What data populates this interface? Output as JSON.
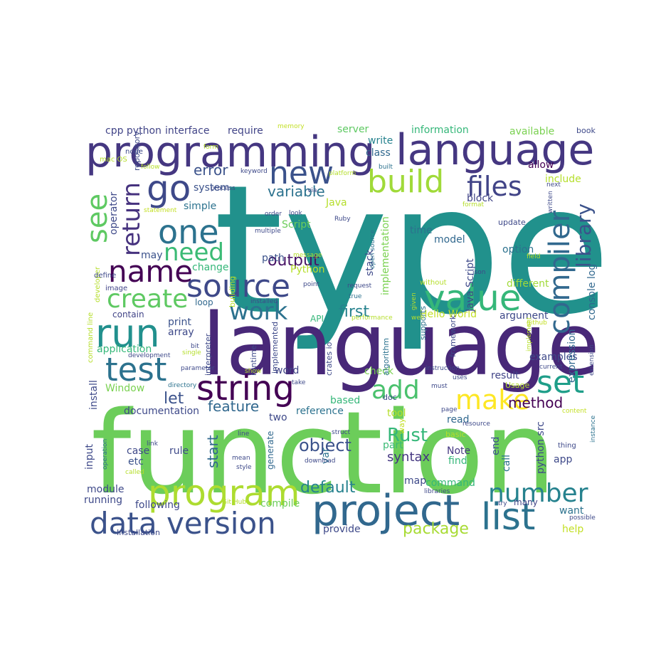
{
  "words": [
    {
      "text": "type",
      "color": "#21918c"
    },
    {
      "text": "function",
      "color": "#6ccd5a"
    },
    {
      "text": "language",
      "color": "#482878"
    },
    {
      "text": "programming",
      "color": "#453781"
    },
    {
      "text": "language",
      "color": "#453781"
    },
    {
      "text": "project",
      "color": "#31688e"
    },
    {
      "text": "program",
      "color": "#addc30"
    },
    {
      "text": "data version",
      "color": "#3b528b"
    },
    {
      "text": "list",
      "color": "#2c728e"
    },
    {
      "text": "number",
      "color": "#26828e"
    },
    {
      "text": "value",
      "color": "#35b779"
    },
    {
      "text": "run",
      "color": "#21908d"
    },
    {
      "text": "test",
      "color": "#2c728e"
    },
    {
      "text": "string",
      "color": "#440154"
    },
    {
      "text": "build",
      "color": "#a0da39"
    },
    {
      "text": "set",
      "color": "#1f9e89"
    },
    {
      "text": "make",
      "color": "#fde725"
    },
    {
      "text": "add",
      "color": "#4ac16d"
    },
    {
      "text": "name",
      "color": "#440154"
    },
    {
      "text": "go",
      "color": "#3e4989"
    },
    {
      "text": "one",
      "color": "#2c728e"
    },
    {
      "text": "new",
      "color": "#3b528b"
    },
    {
      "text": "source",
      "color": "#3e4989"
    },
    {
      "text": "create",
      "color": "#5ec962"
    },
    {
      "text": "see",
      "color": "#5ec962"
    },
    {
      "text": "need",
      "color": "#3bbb75"
    },
    {
      "text": "work",
      "color": "#2c728e"
    },
    {
      "text": "files",
      "color": "#414487"
    },
    {
      "text": "compiler",
      "color": "#31688e"
    },
    {
      "text": "return",
      "color": "#46327e"
    },
    {
      "text": "library",
      "color": "#3b528b"
    },
    {
      "text": "object",
      "color": "#3b528b"
    },
    {
      "text": "Rust",
      "color": "#35b779"
    },
    {
      "text": "default",
      "color": "#26828e"
    },
    {
      "text": "package",
      "color": "#a8db34"
    },
    {
      "text": "method",
      "color": "#440154"
    },
    {
      "text": "feature",
      "color": "#31688e"
    },
    {
      "text": "output",
      "color": "#471365"
    },
    {
      "text": "variable",
      "color": "#2c728e"
    },
    {
      "text": "error",
      "color": "#3b528b"
    },
    {
      "text": "first",
      "color": "#26828e"
    },
    {
      "text": "let",
      "color": "#3b528b"
    },
    {
      "text": "syntax",
      "color": "#453781"
    },
    {
      "text": "documentation",
      "color": "#3e4989"
    },
    {
      "text": "examples",
      "color": "#3e4989"
    },
    {
      "text": "result",
      "color": "#414487"
    },
    {
      "text": "start",
      "color": "#31688e"
    },
    {
      "text": "cpp python",
      "color": "#414487"
    },
    {
      "text": "interface",
      "color": "#414487"
    },
    {
      "text": "require",
      "color": "#414487"
    },
    {
      "text": "server",
      "color": "#5ec962"
    },
    {
      "text": "information",
      "color": "#35b779"
    },
    {
      "text": "available",
      "color": "#7ad151"
    },
    {
      "text": "book",
      "color": "#3e4989"
    },
    {
      "text": "write",
      "color": "#26828e"
    },
    {
      "text": "class",
      "color": "#31688e"
    },
    {
      "text": "allow",
      "color": "#440154"
    },
    {
      "text": "include",
      "color": "#b5de2b"
    },
    {
      "text": "system",
      "color": "#3b528b"
    },
    {
      "text": "simple",
      "color": "#2c728e"
    },
    {
      "text": "Java",
      "color": "#b5de2b"
    },
    {
      "text": "block",
      "color": "#414487"
    },
    {
      "text": "Script",
      "color": "#6ccd5a"
    },
    {
      "text": "time",
      "color": "#2c728e"
    },
    {
      "text": "model",
      "color": "#31688e"
    },
    {
      "text": "update",
      "color": "#3e4989"
    },
    {
      "text": "change",
      "color": "#35b779"
    },
    {
      "text": "path",
      "color": "#3b528b"
    },
    {
      "text": "may",
      "color": "#3b528b"
    },
    {
      "text": "Python",
      "color": "#b5de2b"
    },
    {
      "text": "option",
      "color": "#2c728e"
    },
    {
      "text": "different",
      "color": "#a0da39"
    },
    {
      "text": "print",
      "color": "#3b528b"
    },
    {
      "text": "array",
      "color": "#3e4989"
    },
    {
      "text": "application",
      "color": "#35b779"
    },
    {
      "text": "contain",
      "color": "#414487"
    },
    {
      "text": "loop",
      "color": "#31688e"
    },
    {
      "text": "API",
      "color": "#35b779"
    },
    {
      "text": "Hello World",
      "color": "#c2df23"
    },
    {
      "text": "argument",
      "color": "#3e4989"
    },
    {
      "text": "word",
      "color": "#414487"
    },
    {
      "text": "check",
      "color": "#7ad151"
    },
    {
      "text": "based",
      "color": "#35b779"
    },
    {
      "text": "two",
      "color": "#3e4989"
    },
    {
      "text": "reference",
      "color": "#2c728e"
    },
    {
      "text": "tool",
      "color": "#b5de2b"
    },
    {
      "text": "read",
      "color": "#31688e"
    },
    {
      "text": "case",
      "color": "#3e4989"
    },
    {
      "text": "rule",
      "color": "#3e4989"
    },
    {
      "text": "etc",
      "color": "#3b528b"
    },
    {
      "text": "part",
      "color": "#3bbb75"
    },
    {
      "text": "Note",
      "color": "#453781"
    },
    {
      "text": "find",
      "color": "#35b779"
    },
    {
      "text": "app",
      "color": "#3e4989"
    },
    {
      "text": "module",
      "color": "#3e4989"
    },
    {
      "text": "running",
      "color": "#3e4989"
    },
    {
      "text": "following",
      "color": "#3e4989"
    },
    {
      "text": "compile",
      "color": "#6ccd5a"
    },
    {
      "text": "map",
      "color": "#3e4989"
    },
    {
      "text": "command",
      "color": "#35b779"
    },
    {
      "text": "want",
      "color": "#2c728e"
    },
    {
      "text": "help",
      "color": "#c2df23"
    },
    {
      "text": "provide",
      "color": "#3e4989"
    },
    {
      "text": "Installation",
      "color": "#3e4989"
    },
    {
      "text": "many",
      "color": "#414487"
    },
    {
      "text": "input",
      "color": "#3e4989"
    },
    {
      "text": "var",
      "color": "#2c728e"
    },
    {
      "text": "generate",
      "color": "#31688e"
    },
    {
      "text": "implementation",
      "color": "#7ad151"
    },
    {
      "text": "Java Script",
      "color": "#3e4989"
    },
    {
      "text": "stack",
      "color": "#3e4989"
    },
    {
      "text": "python src",
      "color": "#3e4989"
    },
    {
      "text": "expression",
      "color": "#31688e"
    },
    {
      "text": "console log",
      "color": "#31688e"
    },
    {
      "text": "end",
      "color": "#3b528b"
    },
    {
      "text": "call",
      "color": "#2c728e"
    },
    {
      "text": "install",
      "color": "#3e4989"
    },
    {
      "text": "Window",
      "color": "#7ad151"
    },
    {
      "text": "operator",
      "color": "#3e4989"
    },
    {
      "text": "repository",
      "color": "#3e4989"
    },
    {
      "text": "building",
      "color": "#b5de2b"
    },
    {
      "text": "interpreter",
      "color": "#3e4989"
    },
    {
      "text": "runtime",
      "color": "#3e4989"
    },
    {
      "text": "implemented",
      "color": "#3e4989"
    },
    {
      "text": "crates io",
      "color": "#3e4989"
    },
    {
      "text": "algorithm",
      "color": "#2c728e"
    },
    {
      "text": "supports",
      "color": "#2c728e"
    },
    {
      "text": "framework",
      "color": "#3e4989"
    },
    {
      "text": "doc",
      "color": "#3e4989"
    },
    {
      "text": "Usage",
      "color": "#b5de2b"
    },
    {
      "text": "developer",
      "color": "#b5de2b"
    },
    {
      "text": "command line",
      "color": "#b5de2b"
    },
    {
      "text": "image",
      "color": "#414487"
    },
    {
      "text": "define",
      "color": "#3e4989"
    },
    {
      "text": "mac OS",
      "color": "#b5de2b"
    },
    {
      "text": "node",
      "color": "#3e4989"
    },
    {
      "text": "follow",
      "color": "#b5de2b"
    },
    {
      "text": "form",
      "color": "#b5de2b"
    },
    {
      "text": "memory",
      "color": "#c2df23"
    },
    {
      "text": "keyword",
      "color": "#3e4989"
    },
    {
      "text": "platform",
      "color": "#b5de2b"
    },
    {
      "text": "built",
      "color": "#2c728e"
    },
    {
      "text": "via",
      "color": "#3e4989"
    },
    {
      "text": "process",
      "color": "#3e4989"
    },
    {
      "text": "statement",
      "color": "#c2df23"
    },
    {
      "text": "order",
      "color": "#3e4989"
    },
    {
      "text": "look",
      "color": "#3e4989"
    },
    {
      "text": "multiple",
      "color": "#3e4989"
    },
    {
      "text": "Ruby",
      "color": "#3e4989"
    },
    {
      "text": "message",
      "color": "#b5de2b"
    },
    {
      "text": "point",
      "color": "#3e4989"
    },
    {
      "text": "request",
      "color": "#3e4989"
    },
    {
      "text": "true",
      "color": "#2c728e"
    },
    {
      "text": "performance",
      "color": "#b5de2b"
    },
    {
      "text": "well",
      "color": "#b5de2b"
    },
    {
      "text": "without",
      "color": "#b5de2b"
    },
    {
      "text": "given",
      "color": "#b5de2b"
    },
    {
      "text": "json",
      "color": "#3e4989"
    },
    {
      "text": "open source",
      "color": "#2c728e"
    },
    {
      "text": "resource",
      "color": "#3e4989"
    },
    {
      "text": "try",
      "color": "#3e4989"
    },
    {
      "text": "possible",
      "color": "#3e4989"
    },
    {
      "text": "format",
      "color": "#b5de2b"
    },
    {
      "text": "next",
      "color": "#3e4989"
    },
    {
      "text": "written",
      "color": "#3e4989"
    },
    {
      "text": "field",
      "color": "#b5de2b"
    },
    {
      "text": "github",
      "color": "#c2df23"
    },
    {
      "text": "implement",
      "color": "#b5de2b"
    },
    {
      "text": "current",
      "color": "#3e4989"
    },
    {
      "text": "extension",
      "color": "#3e4989"
    },
    {
      "text": "instruction",
      "color": "#3e4989"
    },
    {
      "text": "uses",
      "color": "#3e4989"
    },
    {
      "text": "must",
      "color": "#3e4989"
    },
    {
      "text": "page",
      "color": "#3e4989"
    },
    {
      "text": "content",
      "color": "#c2df23"
    },
    {
      "text": "instance",
      "color": "#2c728e"
    },
    {
      "text": "basic",
      "color": "#b5de2b"
    },
    {
      "text": "thing",
      "color": "#3e4989"
    },
    {
      "text": "struct",
      "color": "#3e4989"
    },
    {
      "text": "line",
      "color": "#3e4989"
    },
    {
      "text": "mean",
      "color": "#3e4989"
    },
    {
      "text": "style",
      "color": "#3e4989"
    },
    {
      "text": "download",
      "color": "#3e4989"
    },
    {
      "text": "libraries",
      "color": "#3e4989"
    },
    {
      "text": "Git Hub",
      "color": "#b5de2b"
    },
    {
      "text": "link",
      "color": "#3e4989"
    },
    {
      "text": "operation",
      "color": "#2c728e"
    },
    {
      "text": "called",
      "color": "#b5de2b"
    },
    {
      "text": "bit",
      "color": "#3e4989"
    },
    {
      "text": "single",
      "color": "#b5de2b"
    },
    {
      "text": "development",
      "color": "#3e4989"
    },
    {
      "text": "parameter",
      "color": "#3e4989"
    },
    {
      "text": "directory",
      "color": "#2c728e"
    },
    {
      "text": "show",
      "color": "#b5de2b"
    },
    {
      "text": "installed",
      "color": "#3e4989"
    },
    {
      "text": "take",
      "color": "#3e4989"
    },
    {
      "text": "way",
      "color": "#c2df23"
    }
  ]
}
